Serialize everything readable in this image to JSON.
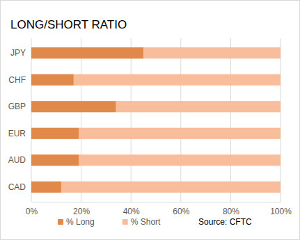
{
  "chart_data": {
    "type": "bar",
    "title": "LONG/SHORT RATIO",
    "orientation": "horizontal",
    "stacked": true,
    "grid": true,
    "legend": "bottom",
    "categories": [
      "JPY",
      "CHF",
      "GBP",
      "EUR",
      "AUD",
      "CAD"
    ],
    "series": [
      {
        "name": "% Long",
        "color": "#e0894a",
        "values": [
          45,
          17,
          34,
          19,
          19,
          12
        ]
      },
      {
        "name": "% Short",
        "color": "#f8bd9a",
        "values": [
          55,
          83,
          66,
          81,
          81,
          88
        ]
      }
    ],
    "xlim": [
      0,
      100
    ],
    "xticks": [
      {
        "value": 0,
        "label": "0%"
      },
      {
        "value": 20,
        "label": "20%"
      },
      {
        "value": 40,
        "label": "40%"
      },
      {
        "value": 60,
        "label": "60%"
      },
      {
        "value": 80,
        "label": "80%"
      },
      {
        "value": 100,
        "label": "100%"
      }
    ],
    "annotations": [
      "Source: CFTC"
    ]
  }
}
